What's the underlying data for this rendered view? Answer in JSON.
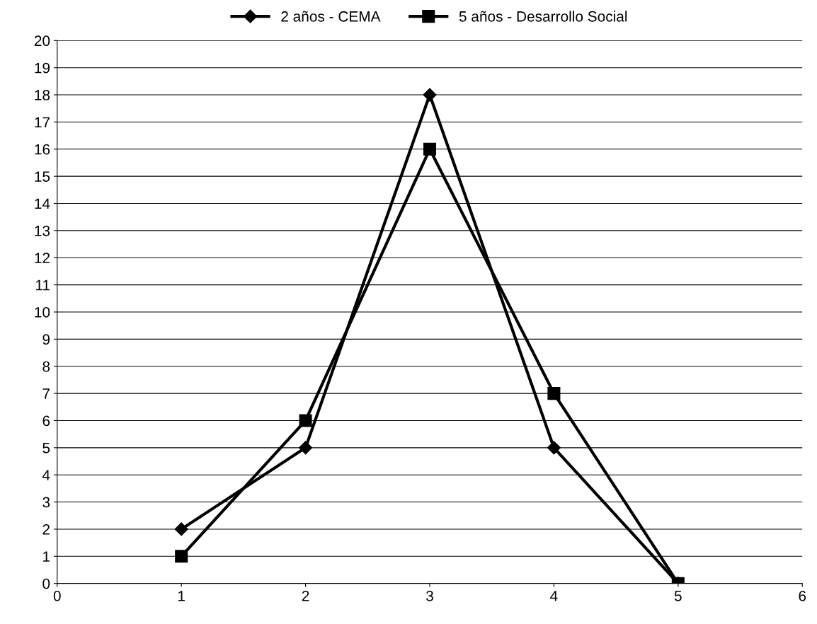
{
  "chart_data": {
    "type": "line",
    "x": [
      1,
      2,
      3,
      4,
      5
    ],
    "series": [
      {
        "name": "2 años - CEMA",
        "color": "#000000",
        "marker": "diamond",
        "values": [
          2,
          5,
          18,
          5,
          0
        ]
      },
      {
        "name": "5 años - Desarrollo Social",
        "color": "#000000",
        "marker": "square",
        "values": [
          1,
          6,
          16,
          7,
          0
        ]
      }
    ],
    "xlim": [
      0,
      6
    ],
    "xticks": [
      0,
      1,
      2,
      3,
      4,
      5,
      6
    ],
    "ylim": [
      0,
      20
    ],
    "yticks": [
      0,
      1,
      2,
      3,
      4,
      5,
      6,
      7,
      8,
      9,
      10,
      11,
      12,
      13,
      14,
      15,
      16,
      17,
      18,
      19,
      20
    ],
    "grid": "y",
    "legend": "top",
    "line_style": "solid"
  }
}
